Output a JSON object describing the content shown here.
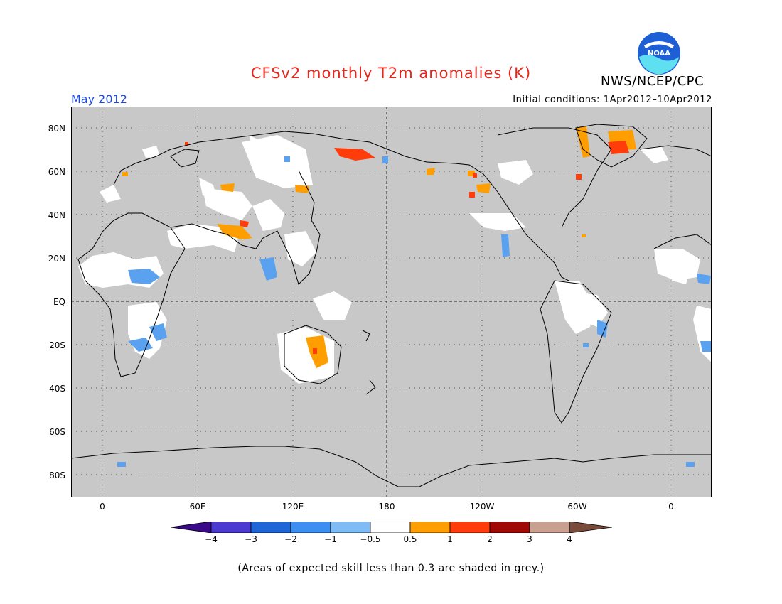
{
  "title": "CFSv2 monthly T2m anomalies (K)",
  "organization": "NWS/NCEP/CPC",
  "forecast_month": "May 2012",
  "initial_conditions": "Initial conditions: 1Apr2012–10Apr2012",
  "logo_text": "NOAA",
  "footnote": "(Areas of expected skill less than 0.3 are shaded in grey.)",
  "map": {
    "type": "global anomaly map",
    "lat_labels": [
      "80N",
      "60N",
      "40N",
      "20N",
      "EQ",
      "20S",
      "40S",
      "60S",
      "80S"
    ],
    "lon_labels": [
      "0",
      "60E",
      "120E",
      "180",
      "120W",
      "60W",
      "0"
    ],
    "background_color": "#c8c8c8",
    "grid": "dotted 30 degrees, dashed equator and dateline"
  },
  "colorbar": {
    "ticks": [
      "−4",
      "−3",
      "−2",
      "−1",
      "−0.5",
      "0.5",
      "1",
      "2",
      "3",
      "4"
    ],
    "colors": [
      "#3a0a8a",
      "#4a3ad0",
      "#1e66d6",
      "#3c8ef0",
      "#7fbbf4",
      "#ffffff",
      "#ff9e00",
      "#ff3c0a",
      "#a00808",
      "#c8a090",
      "#7a4a3a"
    ]
  }
}
